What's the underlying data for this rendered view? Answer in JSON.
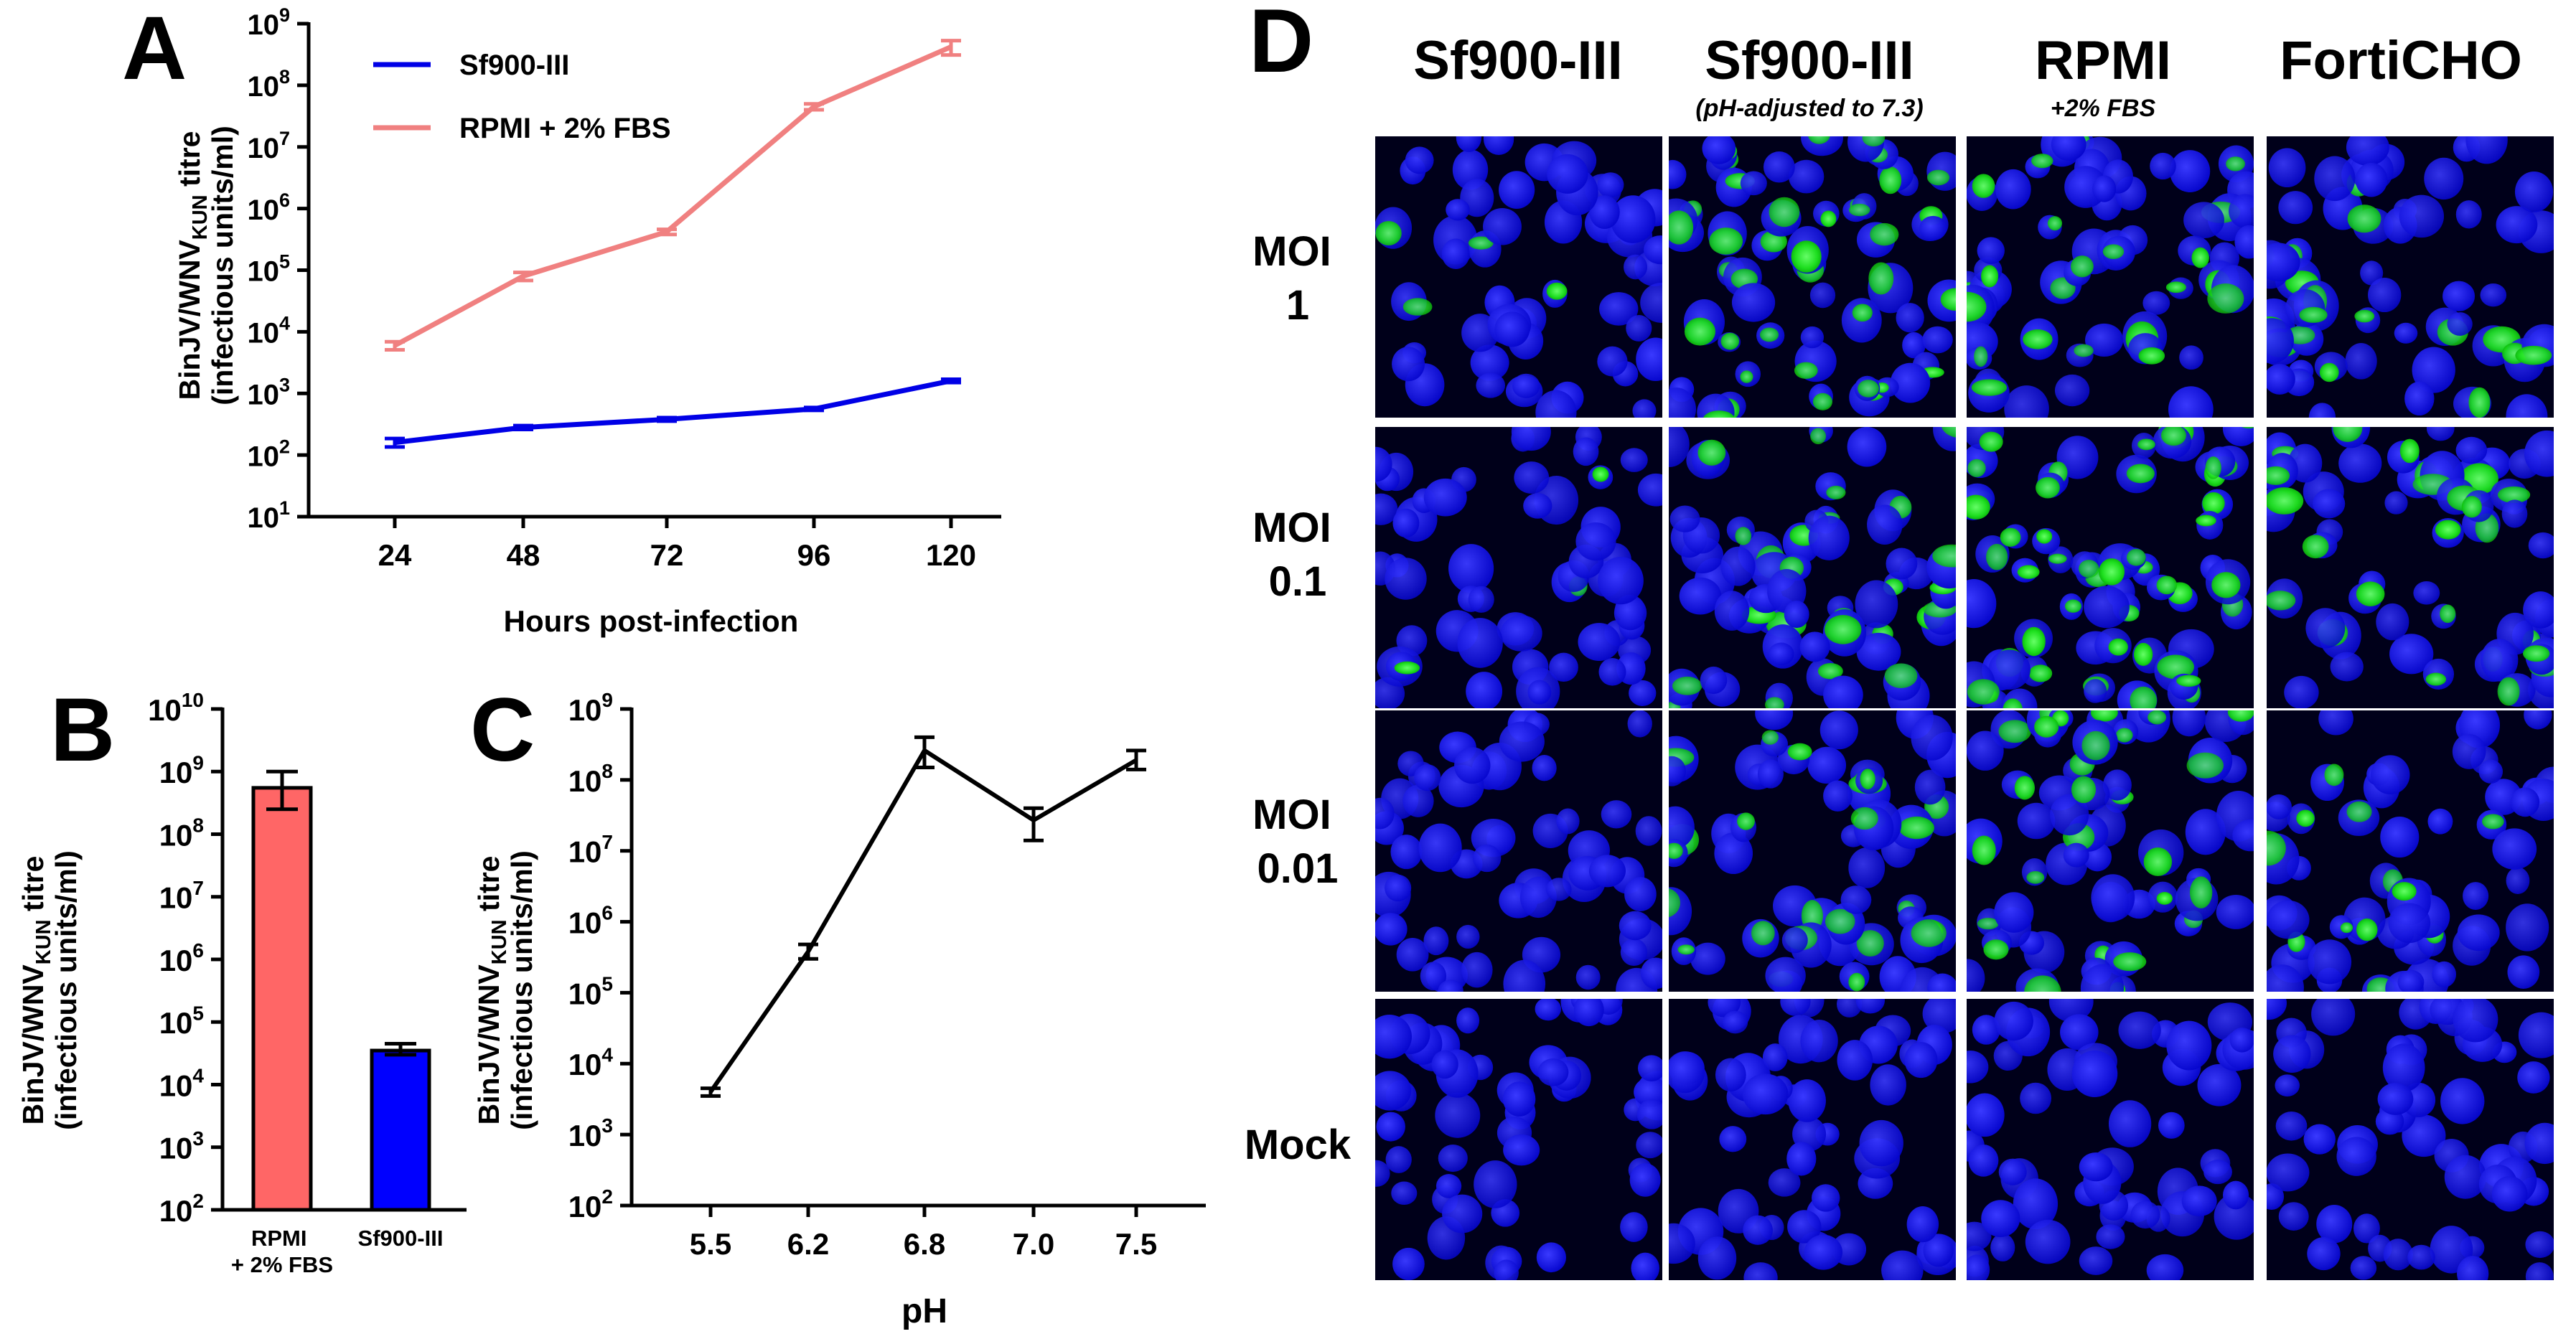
{
  "panel_letters": {
    "a": "A",
    "b": "B",
    "c": "C",
    "d": "D"
  },
  "y_title_main": "BinJV/WNV",
  "y_title_sub": "KUN",
  "y_title_after": " titre",
  "y_title_units": "(infectious units/ml)",
  "colors": {
    "rpmi": "#f08080",
    "sf900": "#0000e6",
    "rpmi_bar": "#ff6666",
    "sf900_bar": "#0000ff",
    "black": "#000000"
  },
  "chart_data": [
    {
      "panel": "A",
      "type": "line",
      "x": [
        24,
        48,
        72,
        96,
        120
      ],
      "xlabel": "Hours post-infection",
      "ylabel": "BinJV/WNVKUN titre (infectious units/ml)",
      "yscale": "log",
      "ylim_exp": [
        1,
        9
      ],
      "series": [
        {
          "name": "Sf900-III",
          "values": [
            160,
            280,
            380,
            560,
            1600
          ],
          "errors": [
            25,
            20,
            25,
            30,
            100
          ]
        },
        {
          "name": "RPMI + 2% FBS",
          "values": [
            6000,
            80000,
            420000,
            45000000,
            420000000
          ],
          "errors": [
            900,
            12000,
            40000,
            5000000,
            110000000
          ]
        }
      ]
    },
    {
      "panel": "B",
      "type": "bar",
      "categories": [
        [
          "RPMI",
          "+ 2% FBS"
        ],
        [
          "Sf900-III"
        ]
      ],
      "values": [
        550000000,
        35000
      ],
      "err_low": [
        250000000,
        30000
      ],
      "err_high": [
        1000000000,
        45000
      ],
      "ylabel": "BinJV/WNVKUN titre (infectious units/ml)",
      "yscale": "log",
      "ylim_exp": [
        2,
        10
      ]
    },
    {
      "panel": "C",
      "type": "line",
      "categories": [
        "5.5",
        "6.2",
        "6.8",
        "7.0",
        "7.5"
      ],
      "values": [
        4000,
        380000,
        260000000,
        27000000,
        190000000
      ],
      "err_low": [
        3500,
        300000,
        150000000,
        14000000,
        140000000
      ],
      "err_high": [
        4500,
        480000,
        400000000,
        40000000,
        260000000
      ],
      "xlabel": "pH",
      "ylabel": "BinJV/WNVKUN titre (infectious units/ml)",
      "yscale": "log",
      "ylim_exp": [
        2,
        9
      ]
    }
  ],
  "panel_d": {
    "columns": [
      {
        "title": "Sf900-III",
        "subtitle": ""
      },
      {
        "title": "Sf900-III",
        "subtitle": "(pH-adjusted to 7.3)"
      },
      {
        "title": "RPMI",
        "subtitle": "+2% FBS"
      },
      {
        "title": "FortiCHO",
        "subtitle": ""
      }
    ],
    "rows": [
      {
        "line1": "MOI",
        "line2": "1"
      },
      {
        "line1": "MOI",
        "line2": "0.1"
      },
      {
        "line1": "MOI",
        "line2": "0.01"
      },
      {
        "line1": "Mock",
        "line2": ""
      }
    ],
    "green_level": [
      [
        0.05,
        0.65,
        0.5,
        0.35
      ],
      [
        0.08,
        0.6,
        0.85,
        0.45
      ],
      [
        0.0,
        0.35,
        0.45,
        0.2
      ],
      [
        0,
        0,
        0,
        0
      ]
    ]
  }
}
